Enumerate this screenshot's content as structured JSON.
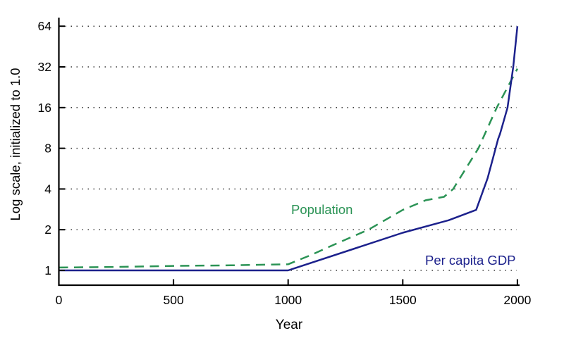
{
  "figure": {
    "background": "#ffffff",
    "axis_color": "#000000",
    "grid_color": "#3c3c3c"
  },
  "labels": {
    "x_axis_title": "Year",
    "y_axis_title": "Log scale, initialized to 1.0",
    "population_label": "Population",
    "gdp_label": "Per capita GDP"
  },
  "chart_data": {
    "type": "line",
    "title": "",
    "xlabel": "Year",
    "ylabel": "Log scale, initialized to 1.0",
    "x_ticks": [
      0,
      500,
      1000,
      1500,
      2000
    ],
    "y_ticks": [
      1,
      2,
      4,
      8,
      16,
      32,
      64
    ],
    "y_scale": "log2",
    "xlim": [
      0,
      2000
    ],
    "ylim": [
      1,
      64
    ],
    "grid": "horizontal dotted lines at each power-of-two tick",
    "legend_position": "inline text annotations on plot",
    "series": [
      {
        "name": "Population",
        "color": "#2b9355",
        "line_style": "dashed",
        "points": [
          [
            0,
            1.05
          ],
          [
            250,
            1.06
          ],
          [
            500,
            1.08
          ],
          [
            750,
            1.09
          ],
          [
            1000,
            1.11
          ],
          [
            1100,
            1.3
          ],
          [
            1200,
            1.55
          ],
          [
            1350,
            2.0
          ],
          [
            1500,
            2.8
          ],
          [
            1600,
            3.3
          ],
          [
            1680,
            3.5
          ],
          [
            1720,
            4.0
          ],
          [
            1830,
            8.0
          ],
          [
            1910,
            16.0
          ],
          [
            2000,
            31.0
          ]
        ]
      },
      {
        "name": "Per capita GDP",
        "color": "#1c218c",
        "line_style": "solid",
        "points": [
          [
            0,
            1.0
          ],
          [
            1000,
            1.0
          ],
          [
            1500,
            1.9
          ],
          [
            1700,
            2.35
          ],
          [
            1820,
            2.8
          ],
          [
            1870,
            4.8
          ],
          [
            1916,
            9.4
          ],
          [
            1924,
            10.2
          ],
          [
            1957,
            16.0
          ],
          [
            1982,
            32.0
          ],
          [
            2000,
            64.0
          ]
        ]
      }
    ]
  }
}
